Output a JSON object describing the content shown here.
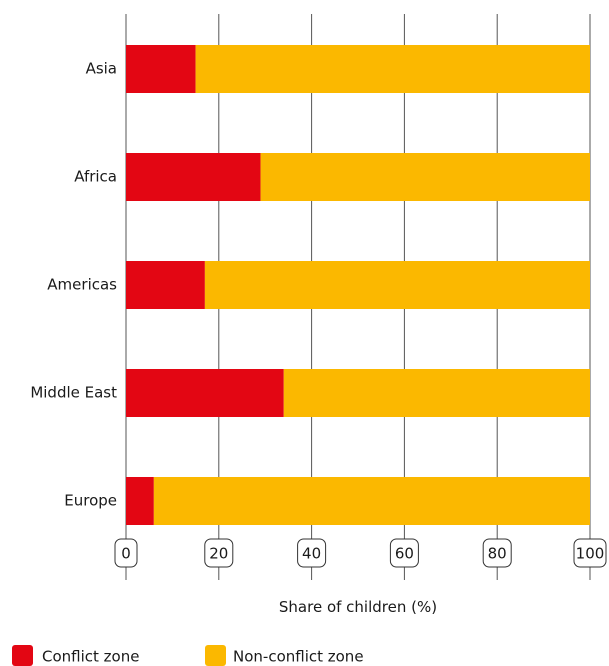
{
  "chart_data": {
    "type": "bar",
    "orientation": "horizontal",
    "stacked": true,
    "categories": [
      "Asia",
      "Africa",
      "Americas",
      "Middle East",
      "Europe"
    ],
    "series": [
      {
        "name": "Conflict zone",
        "values": [
          15,
          29,
          17,
          34,
          6
        ],
        "color": "#e30613"
      },
      {
        "name": "Non-conflict zone",
        "values": [
          85,
          71,
          83,
          66,
          94
        ],
        "color": "#fbb800"
      }
    ],
    "xlabel": "Share of children (%)",
    "ylabel": "",
    "xlim": [
      0,
      100
    ],
    "xticks": [
      0,
      20,
      40,
      60,
      80,
      100
    ],
    "grid": "vertical",
    "legend": "bottom-left"
  }
}
